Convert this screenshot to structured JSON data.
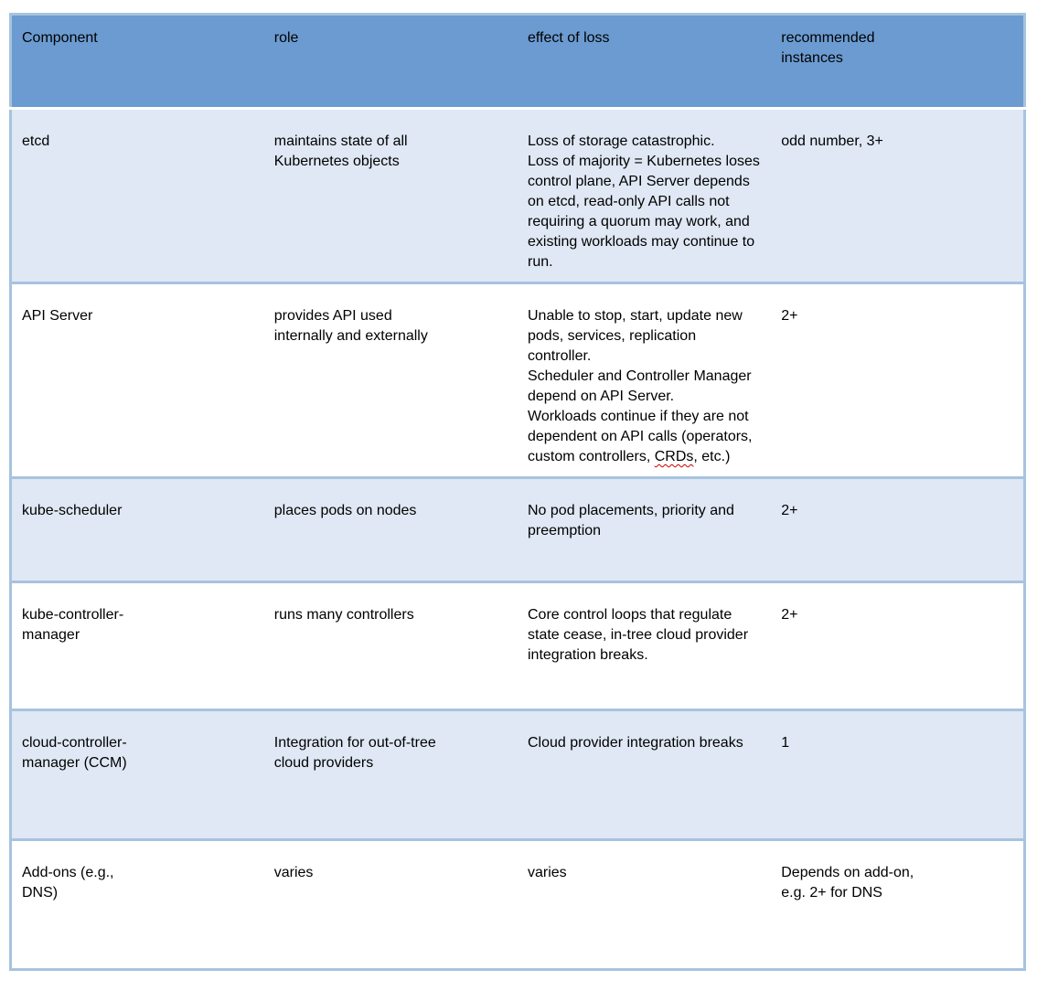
{
  "table": {
    "columns": [
      {
        "key": "component",
        "label": "Component"
      },
      {
        "key": "role",
        "label": "role"
      },
      {
        "key": "effect",
        "label": "effect of loss"
      },
      {
        "key": "instances",
        "label": "recommended instances"
      }
    ],
    "rows": [
      {
        "component": "etcd",
        "role": "maintains state of all Kubernetes objects",
        "effect": [
          "Loss of storage catastrophic.",
          "Loss of majority = Kubernetes loses control plane, API Server depends on etcd, read-only API calls not requiring a quorum may work, and existing workloads may continue to run."
        ],
        "instances": "odd number, 3+"
      },
      {
        "component": "API Server",
        "role": "provides API used internally and externally",
        "effect": [
          "Unable to stop, start, update new pods, services, replication controller.",
          "Scheduler and Controller Manager depend on API Server.",
          "Workloads continue if they are not dependent on API calls (operators, custom controllers, CRDs, etc.)"
        ],
        "misspelled_word": "CRDs",
        "instances": "2+"
      },
      {
        "component": "kube-scheduler",
        "role": "places pods on nodes",
        "effect": [
          "No pod placements, priority and preemption"
        ],
        "instances": "2+"
      },
      {
        "component": "kube-controller-manager",
        "role": "runs many controllers",
        "effect": [
          "Core control loops that regulate state cease, in-tree cloud provider integration breaks."
        ],
        "instances": "2+"
      },
      {
        "component": "cloud-controller-manager (CCM)",
        "role": "Integration for out-of-tree cloud providers",
        "effect": [
          "Cloud provider integration breaks"
        ],
        "instances": "1"
      },
      {
        "component": "Add-ons (e.g., DNS)",
        "role": "varies",
        "effect": [
          "varies"
        ],
        "instances": "Depends on add-on, e.g. 2+ for DNS"
      }
    ]
  },
  "colors": {
    "header_bg": "#6B9BD1",
    "row_alt_bg": "#DFE8F4",
    "row_bg": "#FFFFFF",
    "border": "#A7C3DF",
    "text": "#000000",
    "spellcheck_underline": "#CC0000"
  }
}
